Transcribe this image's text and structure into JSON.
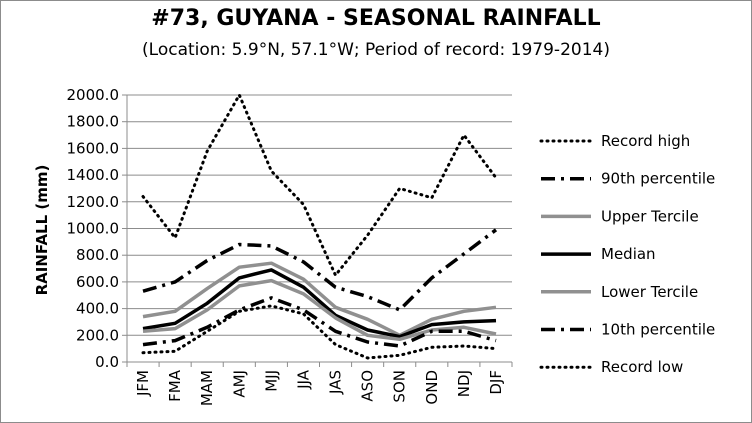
{
  "chart_data": {
    "type": "line",
    "title": "#73, GUYANA - SEASONAL RAINFALL",
    "subtitle": "(Location: 5.9°N, 57.1°W; Period of record: 1979-2014)",
    "xlabel": "",
    "ylabel": "RAINFALL (mm)",
    "ylim": [
      0,
      2000
    ],
    "yticks": [
      "0.0",
      "200.0",
      "400.0",
      "600.0",
      "800.0",
      "1000.0",
      "1200.0",
      "1400.0",
      "1600.0",
      "1800.0",
      "2000.0"
    ],
    "categories": [
      "JFM",
      "FMA",
      "MAM",
      "AMJ",
      "MJJ",
      "JJA",
      "JAS",
      "ASO",
      "SON",
      "OND",
      "NDJ",
      "DJF"
    ],
    "grid": true,
    "legend_position": "right",
    "series": [
      {
        "name": "Record high",
        "style": "dotted",
        "color": "#000000",
        "values": [
          1240,
          930,
          1580,
          2000,
          1430,
          1180,
          650,
          950,
          1300,
          1230,
          1700,
          1380
        ]
      },
      {
        "name": "90th percentile",
        "style": "dashdot",
        "color": "#000000",
        "values": [
          530,
          600,
          760,
          880,
          870,
          750,
          560,
          490,
          390,
          630,
          810,
          990
        ]
      },
      {
        "name": "Upper Tercile",
        "style": "solid",
        "color": "#909090",
        "values": [
          340,
          380,
          550,
          710,
          740,
          620,
          410,
          320,
          200,
          320,
          380,
          410
        ]
      },
      {
        "name": "Median",
        "style": "solid-bold",
        "color": "#000000",
        "values": [
          250,
          290,
          440,
          630,
          690,
          560,
          350,
          240,
          190,
          280,
          300,
          310
        ]
      },
      {
        "name": "Lower Tercile",
        "style": "solid",
        "color": "#909090",
        "values": [
          230,
          250,
          390,
          570,
          610,
          510,
          330,
          200,
          170,
          240,
          260,
          210
        ]
      },
      {
        "name": "10th percentile",
        "style": "dashdot",
        "color": "#000000",
        "values": [
          130,
          160,
          260,
          390,
          480,
          390,
          230,
          150,
          120,
          230,
          230,
          160
        ]
      },
      {
        "name": "Record low",
        "style": "dotted",
        "color": "#000000",
        "values": [
          70,
          80,
          230,
          380,
          420,
          360,
          130,
          30,
          50,
          110,
          120,
          100
        ]
      }
    ]
  }
}
